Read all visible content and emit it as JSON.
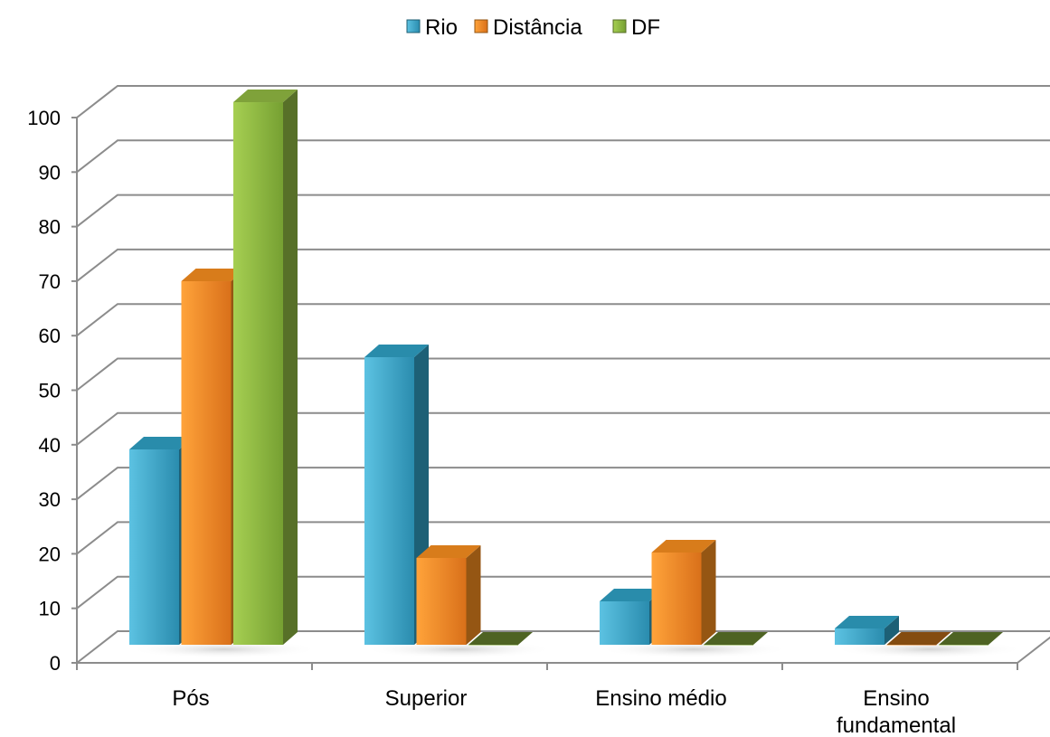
{
  "chart_data": {
    "type": "bar",
    "categories": [
      [
        "Pós"
      ],
      [
        "Superior"
      ],
      [
        "Ensino médio"
      ],
      [
        "Ensino",
        "fundamental"
      ]
    ],
    "series": [
      {
        "name": "Rio",
        "values": [
          36,
          53,
          8,
          3
        ],
        "color": "#2E9BBE"
      },
      {
        "name": "Distância",
        "values": [
          67,
          16,
          17,
          0
        ],
        "color": "#F08A1E"
      },
      {
        "name": "DF",
        "values": [
          100,
          0,
          0,
          0
        ],
        "color": "#8DB440"
      }
    ],
    "ylim": [
      0,
      100
    ],
    "yticks": [
      0,
      10,
      20,
      30,
      40,
      50,
      60,
      70,
      80,
      90,
      100
    ],
    "legend_position": "top",
    "grid": true,
    "style": "3d-clustered-column"
  }
}
